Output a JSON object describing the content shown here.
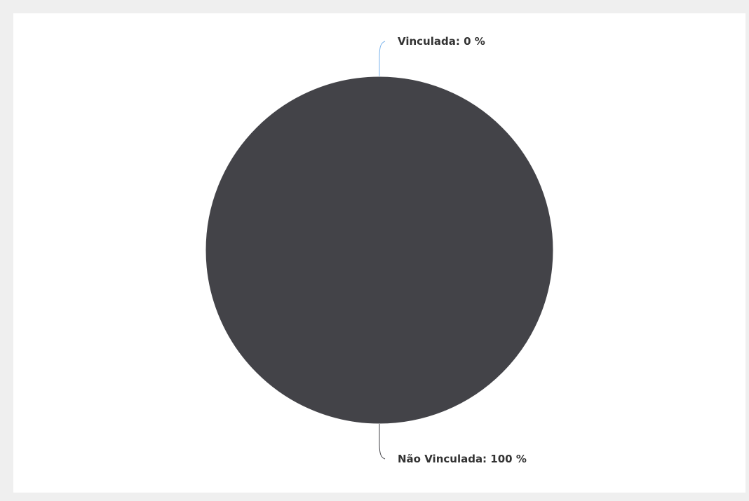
{
  "colors": {
    "page_background": "#efefef",
    "panel_background": "#ffffff",
    "slice_vinculada": "#7cb5ec",
    "slice_nao_vinculada": "#434348",
    "label_text": "#333333"
  },
  "chart_data": {
    "type": "pie",
    "slices": [
      {
        "name": "Vinculada",
        "value": 0,
        "label": "Vinculada: 0 %",
        "color": "#7cb5ec"
      },
      {
        "name": "Não Vinculada",
        "value": 100,
        "label": "Não Vinculada: 100 %",
        "color": "#434348"
      }
    ]
  }
}
